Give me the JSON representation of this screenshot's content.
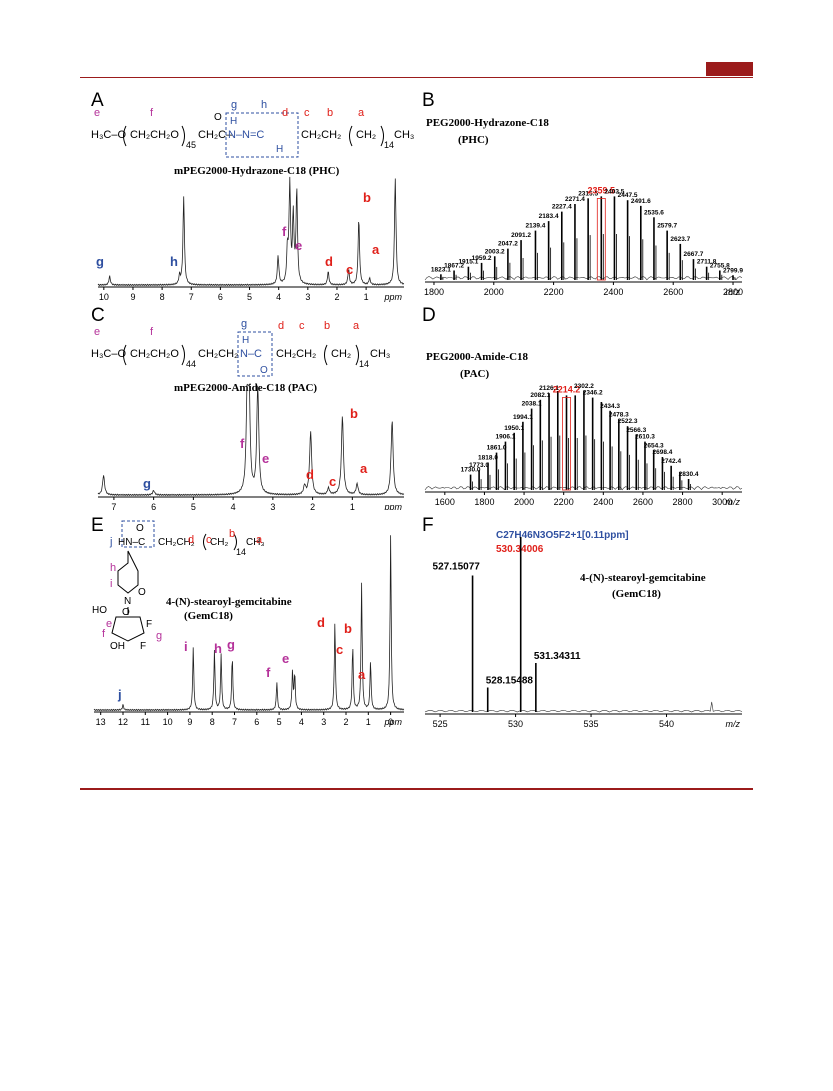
{
  "colors": {
    "rule": "#9b1b1b",
    "red_label": "#e0201a",
    "blue_label": "#2e4fa0",
    "magenta_label": "#b5329a"
  },
  "panels": {
    "A": {
      "letter": "A",
      "title": "mPEG2000-Hydrazone-C18 (PHC)",
      "formula": {
        "left": "H₃C–O",
        "rep1": "CH₂CH₂O",
        "n1": "45",
        "mid": "CH₂C–",
        "carbonyl_o": "O",
        "nh": "N–N=C",
        "h_top": "H",
        "h_bot": "H",
        "chain": "CH₂CH₂",
        "rep2": "CH₂",
        "n2": "14",
        "end": "CH₃"
      },
      "positions": [
        "e",
        "f",
        "g",
        "h",
        "d",
        "c",
        "b",
        "a"
      ],
      "axis_unit": "ppm",
      "ticks": [
        "10",
        "9",
        "8",
        "7",
        "6",
        "5",
        "4",
        "3",
        "2",
        "1",
        "ppm"
      ],
      "peak_labels": [
        "g",
        "h",
        "f",
        "e",
        "d",
        "c",
        "b",
        "a"
      ]
    },
    "B": {
      "letter": "B",
      "title": "PEG2000-Hydrazone-C18",
      "abbr": "(PHC)",
      "highlight": "2359.5",
      "axis_unit": "m/z",
      "ticks": [
        "1800",
        "2000",
        "2200",
        "2400",
        "2600",
        "2800"
      ]
    },
    "C": {
      "letter": "C",
      "title": "mPEG2000-Amide-C18 (PAC)",
      "formula": {
        "left": "H₃C–O",
        "rep1": "CH₂CH₂O",
        "n1": "44",
        "mid": "CH₂CH₂",
        "nh": "N–C",
        "h_top": "H",
        "carbonyl_o": "O",
        "chain": "CH₂CH₂",
        "rep2": "CH₂",
        "n2": "14",
        "end": "CH₃"
      },
      "positions": [
        "e",
        "f",
        "g",
        "d",
        "c",
        "b",
        "a"
      ],
      "axis_unit": "ppm",
      "ticks": [
        "7",
        "6",
        "5",
        "4",
        "3",
        "2",
        "1",
        "ppm"
      ],
      "peak_labels": [
        "f",
        "e",
        "g",
        "d",
        "c",
        "b",
        "a"
      ]
    },
    "D": {
      "letter": "D",
      "title": "PEG2000-Amide-C18",
      "abbr": "(PAC)",
      "highlight": "2214.2",
      "axis_unit": "m/z",
      "ticks": [
        "1600",
        "1800",
        "2000",
        "2200",
        "2400",
        "2600",
        "2800",
        "3000"
      ]
    },
    "E": {
      "letter": "E",
      "title": "4-(N)-stearoyl-gemcitabine",
      "abbr": "(GemC18)",
      "formula": {
        "nh": "HN–C",
        "carbonyl_o": "O",
        "chain": "CH₂CH₂",
        "rep2": "CH₂",
        "n2": "14",
        "end": "CH₃",
        "ho": "HO",
        "oh": "OH",
        "o_ring": "O",
        "f1": "F",
        "f2": "F",
        "n_ring": "N",
        "o_pyr": "O"
      },
      "positions": [
        "j",
        "d",
        "c",
        "b",
        "a",
        "h",
        "i",
        "e",
        "f",
        "g"
      ],
      "axis_unit": "ppm",
      "ticks": [
        "13",
        "12",
        "11",
        "10",
        "9",
        "8",
        "7",
        "6",
        "5",
        "4",
        "3",
        "2",
        "1",
        "0",
        "ppm"
      ],
      "peak_labels": [
        "j",
        "i",
        "h",
        "g",
        "f",
        "e",
        "d",
        "c",
        "b",
        "a"
      ]
    },
    "F": {
      "letter": "F",
      "formula_line": "C27H46N3O5F2+1[0.11ppm]",
      "main_peak": "530.34006",
      "title": "4-(N)-stearoyl-gemcitabine",
      "abbr": "(GemC18)",
      "axis_unit": "m/z",
      "ticks": [
        "525",
        "530",
        "535",
        "540"
      ]
    }
  },
  "chart_data": [
    {
      "type": "line",
      "panel": "B",
      "title": "PEG2000-Hydrazone-C18",
      "xlabel": "m/z",
      "xlim": [
        1770,
        2830
      ],
      "x": [
        1823.1,
        1867.2,
        1915.1,
        1959.2,
        2003.2,
        2047.2,
        2091.2,
        2139.4,
        2183.4,
        2227.4,
        2271.4,
        2315.5,
        2359.5,
        2403.5,
        2447.5,
        2491.6,
        2535.6,
        2579.7,
        2623.7,
        2667.7,
        2711.8,
        2755.8,
        2799.9
      ],
      "values": [
        6,
        10,
        14,
        18,
        25,
        33,
        42,
        52,
        62,
        72,
        80,
        86,
        88,
        88,
        84,
        78,
        66,
        52,
        38,
        22,
        14,
        10,
        5
      ],
      "labels": [
        "1823.1",
        "1867.2",
        "1915.1",
        "1959.2",
        "2003.2",
        "2047.2",
        "2091.2",
        "2139.4",
        "2183.4",
        "2227.4",
        "2271.4",
        "2315.5",
        "2359.5",
        "2403.5",
        "2447.5",
        "2491.6",
        "2535.6",
        "2579.7",
        "2623.7",
        "2667.7",
        "2711.8",
        "2755.8",
        "2799.9"
      ]
    },
    {
      "type": "line",
      "panel": "D",
      "title": "PEG2000-Amide-C18",
      "xlabel": "m/z",
      "xlim": [
        1500,
        3100
      ],
      "x": [
        1730.0,
        1773.0,
        1818.0,
        1861.0,
        1906.1,
        1950.1,
        1994.1,
        2038.1,
        2082.1,
        2126.1,
        2170.2,
        2214.2,
        2258.2,
        2302.2,
        2346.2,
        2390.3,
        2434.3,
        2478.3,
        2522.3,
        2566.3,
        2610.3,
        2654.3,
        2698.4,
        2742.4,
        2786.4,
        2830.4
      ],
      "values": [
        14,
        18,
        25,
        34,
        44,
        52,
        62,
        74,
        82,
        88,
        90,
        86,
        86,
        90,
        84,
        80,
        72,
        64,
        58,
        50,
        44,
        36,
        30,
        22,
        16,
        10
      ],
      "labels": [
        "1730.0",
        "1773.0",
        "1818.0",
        "1861.0",
        "1906.1",
        "1950.1",
        "1994.1",
        "2038.1",
        "2082.1",
        "2126.1",
        "",
        "2214.2",
        "",
        "2302.2",
        "2346.2",
        "",
        "2434.3",
        "2478.3",
        "2522.3",
        "2566.3",
        "2610.3",
        "2654.3",
        "2698.4",
        "2742.4",
        "",
        "2830.4"
      ]
    },
    {
      "type": "line",
      "panel": "F",
      "title": "4-(N)-stearoyl-gemcitabine",
      "xlabel": "m/z",
      "xlim": [
        524,
        545
      ],
      "x": [
        527.15077,
        528.15488,
        530.34006,
        531.34311
      ],
      "values": [
        78,
        14,
        100,
        28
      ],
      "labels": [
        "527.15077",
        "528.15488",
        "530.34006",
        "531.34311"
      ]
    },
    {
      "type": "line",
      "panel": "A",
      "title": "mPEG2000-Hydrazone-C18 (PHC)",
      "xlabel": "ppm",
      "xlim": [
        10.2,
        -0.3
      ],
      "x": [
        9.8,
        7.4,
        7.26,
        4.02,
        3.7,
        3.62,
        3.5,
        3.38,
        2.3,
        1.6,
        1.25,
        0.88,
        0.0
      ],
      "values": [
        8,
        8,
        80,
        26,
        30,
        90,
        62,
        85,
        12,
        14,
        60,
        6,
        98
      ]
    },
    {
      "type": "line",
      "panel": "C",
      "title": "mPEG2000-Amide-C18 (PAC)",
      "xlabel": "ppm",
      "xlim": [
        7.4,
        -0.3
      ],
      "x": [
        7.26,
        6.0,
        3.64,
        3.6,
        3.38,
        2.2,
        2.05,
        1.6,
        1.25,
        0.88,
        0.0
      ],
      "values": [
        18,
        4,
        100,
        82,
        98,
        8,
        58,
        6,
        72,
        10,
        68
      ],
      "labels": []
    },
    {
      "type": "line",
      "panel": "E",
      "title": "4-(N)-stearoyl-gemcitabine (GemC18)",
      "xlabel": "ppm",
      "xlim": [
        13.3,
        -0.6
      ],
      "x": [
        12.0,
        8.85,
        7.9,
        7.6,
        7.1,
        5.1,
        4.4,
        4.3,
        2.5,
        1.7,
        1.3,
        0.9,
        0.0
      ],
      "values": [
        3,
        36,
        34,
        32,
        30,
        16,
        22,
        20,
        50,
        36,
        72,
        28,
        100
      ],
      "labels": []
    }
  ]
}
